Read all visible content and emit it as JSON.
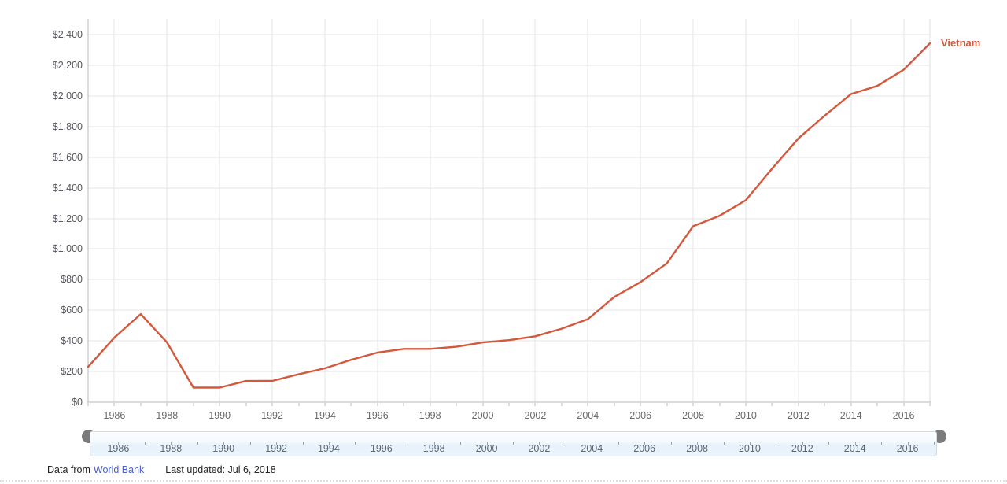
{
  "colors": {
    "line": "#d4583b",
    "grid": "#e3e4e7",
    "axis": "#b7babe",
    "plot_right_border": "#dcdee2",
    "y_label": "#55555e",
    "x_label": "#68686f",
    "slider_label": "#5c6874",
    "slider_tick": "#97a6b4",
    "handle": "#7b7b7b",
    "link": "#4c5fc4"
  },
  "chart_data": {
    "type": "line",
    "title": "",
    "xlabel": "",
    "ylabel": "",
    "x": [
      1985,
      1986,
      1987,
      1988,
      1989,
      1990,
      1991,
      1992,
      1993,
      1994,
      1995,
      1996,
      1997,
      1998,
      1999,
      2000,
      2001,
      2002,
      2003,
      2004,
      2005,
      2006,
      2007,
      2008,
      2009,
      2010,
      2011,
      2012,
      2013,
      2014,
      2015,
      2016,
      2017
    ],
    "series": [
      {
        "name": "Vietnam",
        "values": [
          231,
          422,
          575,
          390,
          95,
          95,
          138,
          139,
          182,
          221,
          277,
          324,
          348,
          348,
          362,
          390,
          405,
          430,
          480,
          542,
          687,
          784,
          906,
          1149,
          1217,
          1318,
          1525,
          1722,
          1871,
          2012,
          2065,
          2171,
          2343
        ]
      }
    ],
    "ylim": [
      0,
      2500
    ],
    "yticks": [
      0,
      200,
      400,
      600,
      800,
      1000,
      1200,
      1400,
      1600,
      1800,
      2000,
      2200,
      2400
    ],
    "ytick_labels": [
      "$0",
      "$200",
      "$400",
      "$600",
      "$800",
      "$1,000",
      "$1,200",
      "$1,400",
      "$1,600",
      "$1,800",
      "$2,000",
      "$2,200",
      "$2,400"
    ],
    "xtick_years": [
      1986,
      1988,
      1990,
      1992,
      1994,
      1996,
      1998,
      2000,
      2002,
      2004,
      2006,
      2008,
      2010,
      2012,
      2014,
      2016
    ],
    "xtick_labels": [
      "1986",
      "1988",
      "1990",
      "1992",
      "1994",
      "1996",
      "1998",
      "2000",
      "2002",
      "2004",
      "2006",
      "2008",
      "2010",
      "2012",
      "2014",
      "2016"
    ],
    "grid": true,
    "legend_position": "end-of-line"
  },
  "slider": {
    "start_year": 1985,
    "end_year": 2017,
    "labeled_years": [
      1986,
      1988,
      1990,
      1992,
      1994,
      1996,
      1998,
      2000,
      2002,
      2004,
      2006,
      2008,
      2010,
      2012,
      2014,
      2016
    ],
    "labels": [
      "1986",
      "1988",
      "1990",
      "1992",
      "1994",
      "1996",
      "1998",
      "2000",
      "2002",
      "2004",
      "2006",
      "2008",
      "2010",
      "2012",
      "2014",
      "2016"
    ]
  },
  "footer": {
    "data_from": "Data from",
    "source_link": "World Bank",
    "last_updated": "Last updated: Jul 6, 2018"
  }
}
